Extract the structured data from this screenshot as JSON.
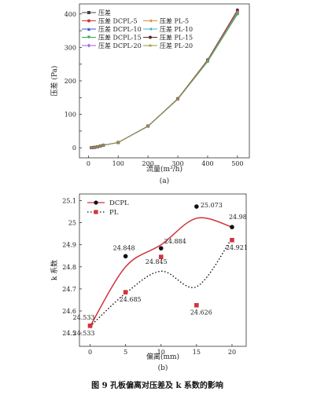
{
  "figure_caption": "图 9   孔板偏离对压差及 k 系数的影响",
  "chart_data": [
    {
      "type": "line",
      "panel_label": "(a)",
      "xlabel": "流量(m³/h)",
      "ylabel": "压差 (Pa)",
      "xlim": [
        -30,
        540
      ],
      "ylim": [
        -30,
        430
      ],
      "xticks": [
        0,
        100,
        200,
        300,
        400,
        500
      ],
      "yticks": [
        0,
        50,
        100,
        150,
        200,
        250,
        300,
        350,
        400
      ],
      "x": [
        10,
        20,
        30,
        40,
        50,
        100,
        200,
        300,
        400,
        500
      ],
      "legend_position": "top-left",
      "series": [
        {
          "name": "压差",
          "color": "#444444",
          "marker": "square",
          "values": [
            0.3,
            1.2,
            2.8,
            5.0,
            7.8,
            16,
            65,
            146,
            260,
            405
          ]
        },
        {
          "name": "压差 DCPL-5",
          "color": "#d0343a",
          "marker": "circle",
          "values": [
            0.3,
            1.2,
            2.8,
            5.0,
            7.8,
            16,
            65,
            147,
            262,
            410
          ]
        },
        {
          "name": "压差 PL-5",
          "color": "#e08a2a",
          "marker": "tri-left",
          "values": [
            0.3,
            1.2,
            2.8,
            5.0,
            7.8,
            16,
            65,
            146,
            261,
            407
          ]
        },
        {
          "name": "压差 DCPL-10",
          "color": "#2f4fd6",
          "marker": "triangle-up",
          "values": [
            0.3,
            1.2,
            2.8,
            5.0,
            7.8,
            16,
            65,
            146,
            260,
            404
          ]
        },
        {
          "name": "压差 PL-10",
          "color": "#3fb6c8",
          "marker": "tri-left",
          "values": [
            0.3,
            1.2,
            2.8,
            5.0,
            7.8,
            16,
            64,
            145,
            258,
            400
          ]
        },
        {
          "name": "压差 DCPL-15",
          "color": "#34a853",
          "marker": "triangle-down",
          "values": [
            0.3,
            1.2,
            2.8,
            5.0,
            7.8,
            16,
            64,
            145,
            257,
            399
          ]
        },
        {
          "name": "压差 PL-15",
          "color": "#5b2a2a",
          "marker": "circle",
          "values": [
            0.3,
            1.2,
            2.8,
            5.0,
            7.8,
            16,
            65,
            147,
            263,
            412
          ]
        },
        {
          "name": "压差 DCPL-20",
          "color": "#a760d6",
          "marker": "diamond",
          "values": [
            0.3,
            1.2,
            2.8,
            5.0,
            7.8,
            16,
            65,
            146,
            261,
            406
          ]
        },
        {
          "name": "压差 PL-20",
          "color": "#9a9a2a",
          "marker": "star",
          "values": [
            0.3,
            1.2,
            2.8,
            5.0,
            7.8,
            16,
            65,
            146,
            260,
            403
          ]
        }
      ]
    },
    {
      "type": "scatter",
      "panel_label": "(b)",
      "xlabel": "偏离(mm)",
      "ylabel": "k 系数",
      "xlim": [
        -1.5,
        22
      ],
      "ylim": [
        24.44,
        25.13
      ],
      "xticks": [
        0,
        5,
        10,
        15,
        20
      ],
      "yticks": [
        24.5,
        24.6,
        24.7,
        24.8,
        24.9,
        25.0,
        25.1
      ],
      "legend_position": "top-left",
      "series": [
        {
          "name": "DCPL",
          "color": "#111111",
          "marker": "circle",
          "line": "solid",
          "line_color": "#d0343a",
          "x": [
            0,
            5,
            10,
            15,
            20
          ],
          "values": [
            24.533,
            24.848,
            24.884,
            25.073,
            24.98
          ],
          "labels": [
            "24.533",
            "24.848",
            "24.884",
            "25.073",
            "24.98"
          ]
        },
        {
          "name": "PL",
          "color": "#d0343a",
          "marker": "square",
          "line": "dotted",
          "line_color": "#111111",
          "x": [
            0,
            5,
            10,
            15,
            20
          ],
          "values": [
            24.533,
            24.685,
            24.845,
            24.626,
            24.921
          ],
          "labels": [
            "24.533",
            "24.685",
            "24.845",
            "24.626",
            "24.921"
          ]
        }
      ]
    }
  ]
}
